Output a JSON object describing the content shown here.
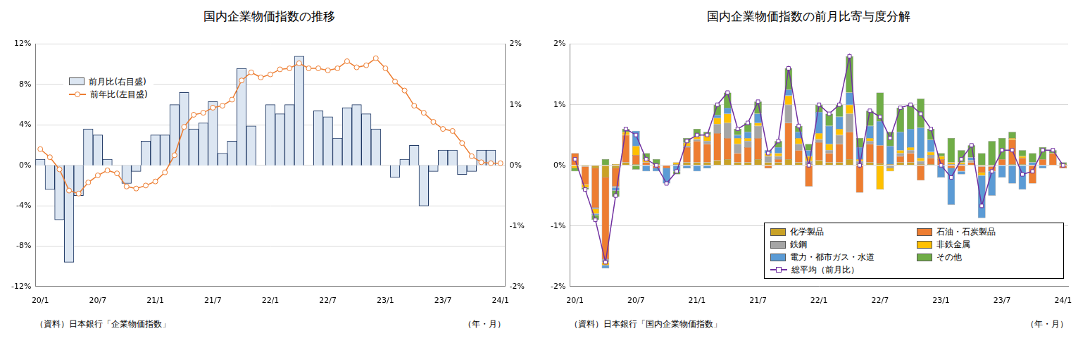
{
  "chart_data": [
    {
      "type": "bar",
      "title": "国内企業物価指数の推移",
      "xlabel": "（年・月）",
      "source": "（資料）日本銀行「企業物価指数」",
      "categories": [
        "20/1",
        null,
        null,
        null,
        null,
        null,
        "20/7",
        null,
        null,
        null,
        null,
        null,
        "21/1",
        null,
        null,
        null,
        null,
        null,
        "21/7",
        null,
        null,
        null,
        null,
        null,
        "22/1",
        null,
        null,
        null,
        null,
        null,
        "22/7",
        null,
        null,
        null,
        null,
        null,
        "23/1",
        null,
        null,
        null,
        null,
        null,
        "23/7",
        null,
        null,
        null,
        null,
        null,
        "24/1"
      ],
      "series": [
        {
          "name": "前月比(右目盛)",
          "type": "bar",
          "axis": "y2",
          "color": "#dce6f2",
          "values": [
            0.1,
            -0.4,
            -0.9,
            -1.6,
            -0.5,
            0.6,
            0.5,
            0.1,
            0.0,
            -0.3,
            -0.1,
            0.4,
            0.5,
            0.5,
            1.0,
            1.2,
            0.6,
            0.7,
            1.05,
            0.2,
            0.4,
            1.6,
            0.65,
            0.0,
            1.0,
            0.85,
            1.0,
            1.8,
            0.0,
            0.9,
            0.8,
            0.45,
            0.95,
            1.0,
            0.85,
            0.6,
            0.0,
            -0.2,
            0.1,
            0.33,
            -0.67,
            -0.1,
            0.25,
            0.25,
            -0.15,
            -0.1,
            0.25,
            0.25,
            0.0
          ]
        },
        {
          "name": "前年比(左目盛)",
          "type": "line",
          "color": "#ed7d31",
          "marker": "circle",
          "values": [
            1.6,
            0.8,
            -0.4,
            -2.5,
            -2.8,
            -1.7,
            -1.0,
            -0.5,
            -0.8,
            -2.1,
            -2.3,
            -2.0,
            -1.6,
            -0.7,
            1.0,
            3.8,
            5.0,
            5.2,
            5.7,
            5.9,
            6.5,
            8.4,
            9.2,
            8.7,
            9.0,
            9.5,
            9.6,
            10.1,
            9.6,
            9.6,
            9.4,
            9.6,
            10.3,
            9.7,
            9.9,
            10.6,
            9.6,
            8.3,
            7.4,
            5.9,
            5.2,
            4.3,
            3.6,
            3.4,
            2.2,
            0.9,
            0.3,
            0.2,
            0.2
          ]
        }
      ],
      "ylim": [
        -12,
        12
      ],
      "yticks": [
        {
          "value": -12,
          "label": "-12%"
        },
        {
          "value": -8,
          "label": "-8%"
        },
        {
          "value": -4,
          "label": "-4%"
        },
        {
          "value": 0,
          "label": "0%"
        },
        {
          "value": 4,
          "label": "4%"
        },
        {
          "value": 8,
          "label": "8%"
        },
        {
          "value": 12,
          "label": "12%"
        }
      ],
      "y2lim": [
        -2,
        2
      ],
      "y2ticks": [
        {
          "value": -2,
          "label": "-2%"
        },
        {
          "value": -1,
          "label": "-1%"
        },
        {
          "value": 0,
          "label": "0%"
        },
        {
          "value": 1,
          "label": "1%"
        },
        {
          "value": 2,
          "label": "2%"
        }
      ],
      "grid": true,
      "legend": "upper left"
    },
    {
      "type": "bar",
      "title": "国内企業物価指数の前月比寄与度分解",
      "xlabel": "（年・月）",
      "source": "（資料）日本銀行「国内企業物価指数」",
      "stacked": true,
      "categories": [
        "20/1",
        null,
        null,
        null,
        null,
        null,
        "20/7",
        null,
        null,
        null,
        null,
        null,
        "21/1",
        null,
        null,
        null,
        null,
        null,
        "21/7",
        null,
        null,
        null,
        null,
        null,
        "22/1",
        null,
        null,
        null,
        null,
        null,
        "22/7",
        null,
        null,
        null,
        null,
        null,
        "23/1",
        null,
        null,
        null,
        null,
        null,
        "23/7",
        null,
        null,
        null,
        null,
        null,
        "24/1"
      ],
      "series": [
        {
          "name": "化学製品",
          "type": "bar",
          "color": "#c9a227",
          "values": [
            0.0,
            -0.02,
            -0.05,
            -0.2,
            -0.05,
            0.05,
            0.02,
            0,
            0,
            0,
            0.02,
            0.05,
            0.05,
            0.05,
            0.08,
            0.1,
            0.05,
            0.05,
            0.1,
            0.05,
            0.05,
            0.1,
            0.05,
            0.02,
            0.08,
            0.05,
            0.05,
            0.1,
            0.02,
            0.05,
            0.03,
            0.02,
            0.05,
            0.05,
            0.02,
            0.02,
            0,
            0,
            0,
            0,
            -0.02,
            -0.02,
            0,
            0.02,
            0.02,
            0,
            0,
            0,
            0
          ]
        },
        {
          "name": "石油・石炭製品",
          "type": "bar",
          "color": "#ed7d31",
          "values": [
            0.2,
            -0.3,
            -0.65,
            -1.35,
            -0.3,
            0.45,
            0.15,
            0.05,
            -0.05,
            -0.05,
            0,
            0.25,
            0.35,
            0.3,
            0.45,
            0.35,
            0.15,
            0.25,
            0.35,
            -0.05,
            0.05,
            0.6,
            0.2,
            -0.35,
            0.3,
            0.15,
            0.3,
            0.45,
            -0.45,
            0.3,
            0.3,
            0,
            0.1,
            0.15,
            -0.25,
            0.1,
            0.1,
            -0.05,
            -0.1,
            0.05,
            -0.1,
            -0.08,
            0.1,
            0.4,
            0.1,
            -0.3,
            0.1,
            0.2,
            -0.05
          ]
        },
        {
          "name": "鉄鋼",
          "type": "bar",
          "color": "#a5a5a5",
          "values": [
            0,
            0,
            -0.02,
            -0.05,
            -0.02,
            0,
            0,
            0,
            0,
            0,
            0,
            0.02,
            0.03,
            0.05,
            0.15,
            0.25,
            0.15,
            0.1,
            0.2,
            0.1,
            0.05,
            0.3,
            0.1,
            0.05,
            0.05,
            0.05,
            0.15,
            0.3,
            0.05,
            0.05,
            0,
            -0.05,
            0.05,
            0.05,
            0.05,
            0.05,
            0,
            0.02,
            0.02,
            0.02,
            0,
            0,
            0,
            0,
            0,
            0,
            0,
            0,
            0
          ]
        },
        {
          "name": "非鉄金属",
          "type": "bar",
          "color": "#ffc000",
          "values": [
            -0.05,
            -0.05,
            -0.08,
            -0.05,
            0.02,
            0.05,
            0.15,
            0.05,
            0.02,
            0,
            0.03,
            0.05,
            0.05,
            0.1,
            0.1,
            0.15,
            0.1,
            0.05,
            0.05,
            0.05,
            0.05,
            0.15,
            0.1,
            0.08,
            0.1,
            0.1,
            0.1,
            0.15,
            0.03,
            0.05,
            -0.4,
            -0.05,
            0.05,
            0.05,
            0.05,
            0.05,
            0.05,
            0.03,
            0.03,
            0.01,
            -0.05,
            0,
            0,
            0.03,
            0.03,
            0,
            0,
            0,
            0.02
          ]
        },
        {
          "name": "電力・都市ガス・水道",
          "type": "bar",
          "color": "#5b9bd5",
          "values": [
            0,
            0,
            -0.02,
            -0.05,
            -0.05,
            0,
            0.25,
            -0.1,
            -0.05,
            -0.25,
            -0.1,
            -0.05,
            -0.1,
            -0.05,
            0.05,
            0.1,
            0.05,
            0.1,
            0.15,
            0.05,
            0.1,
            0.1,
            0.1,
            0.1,
            0.35,
            0.3,
            0.2,
            0.2,
            0.2,
            0.2,
            0.4,
            0.3,
            0.3,
            0.3,
            0.5,
            0.2,
            -0.2,
            -0.6,
            -0.05,
            0.05,
            -0.7,
            -0.4,
            -0.2,
            -0.3,
            -0.4,
            0.05,
            -0.05,
            0,
            0
          ]
        },
        {
          "name": "その他",
          "type": "bar",
          "color": "#70ad47",
          "values": [
            -0.05,
            -0.03,
            -0.08,
            0.1,
            -0.1,
            0.05,
            -0.07,
            0.1,
            0.08,
            0,
            -0.05,
            0.08,
            0.12,
            0.05,
            0.17,
            0.25,
            0.1,
            0.15,
            0.2,
            0,
            0.1,
            0.35,
            0.1,
            0.1,
            0.12,
            0.2,
            0.2,
            0.6,
            0.15,
            0.25,
            0.47,
            0.23,
            0.4,
            0.4,
            0.48,
            0.18,
            0.05,
            0.4,
            0.2,
            0.2,
            0.2,
            0.4,
            0.35,
            0.1,
            0.1,
            0.15,
            0.2,
            0.05,
            0.03
          ]
        },
        {
          "name": "総平均（前月比）",
          "type": "line",
          "color": "#7030a0",
          "marker": "square",
          "values": [
            0.1,
            -0.4,
            -0.9,
            -1.6,
            -0.5,
            0.6,
            0.5,
            0.1,
            0.0,
            -0.3,
            -0.1,
            0.4,
            0.5,
            0.5,
            1.0,
            1.2,
            0.6,
            0.7,
            1.05,
            0.2,
            0.4,
            1.6,
            0.65,
            0.0,
            1.0,
            0.85,
            1.0,
            1.8,
            0.0,
            0.9,
            0.8,
            0.45,
            0.95,
            1.0,
            0.85,
            0.6,
            0.0,
            -0.2,
            0.1,
            0.33,
            -0.67,
            -0.1,
            0.25,
            0.25,
            -0.15,
            -0.1,
            0.25,
            0.25,
            0.0
          ]
        }
      ],
      "ylim": [
        -2,
        2
      ],
      "yticks": [
        {
          "value": -2,
          "label": "-2%"
        },
        {
          "value": -1,
          "label": "-1%"
        },
        {
          "value": 0,
          "label": "0%"
        },
        {
          "value": 1,
          "label": "1%"
        },
        {
          "value": 2,
          "label": "2%"
        }
      ],
      "grid": true,
      "legend": "lower right"
    }
  ]
}
